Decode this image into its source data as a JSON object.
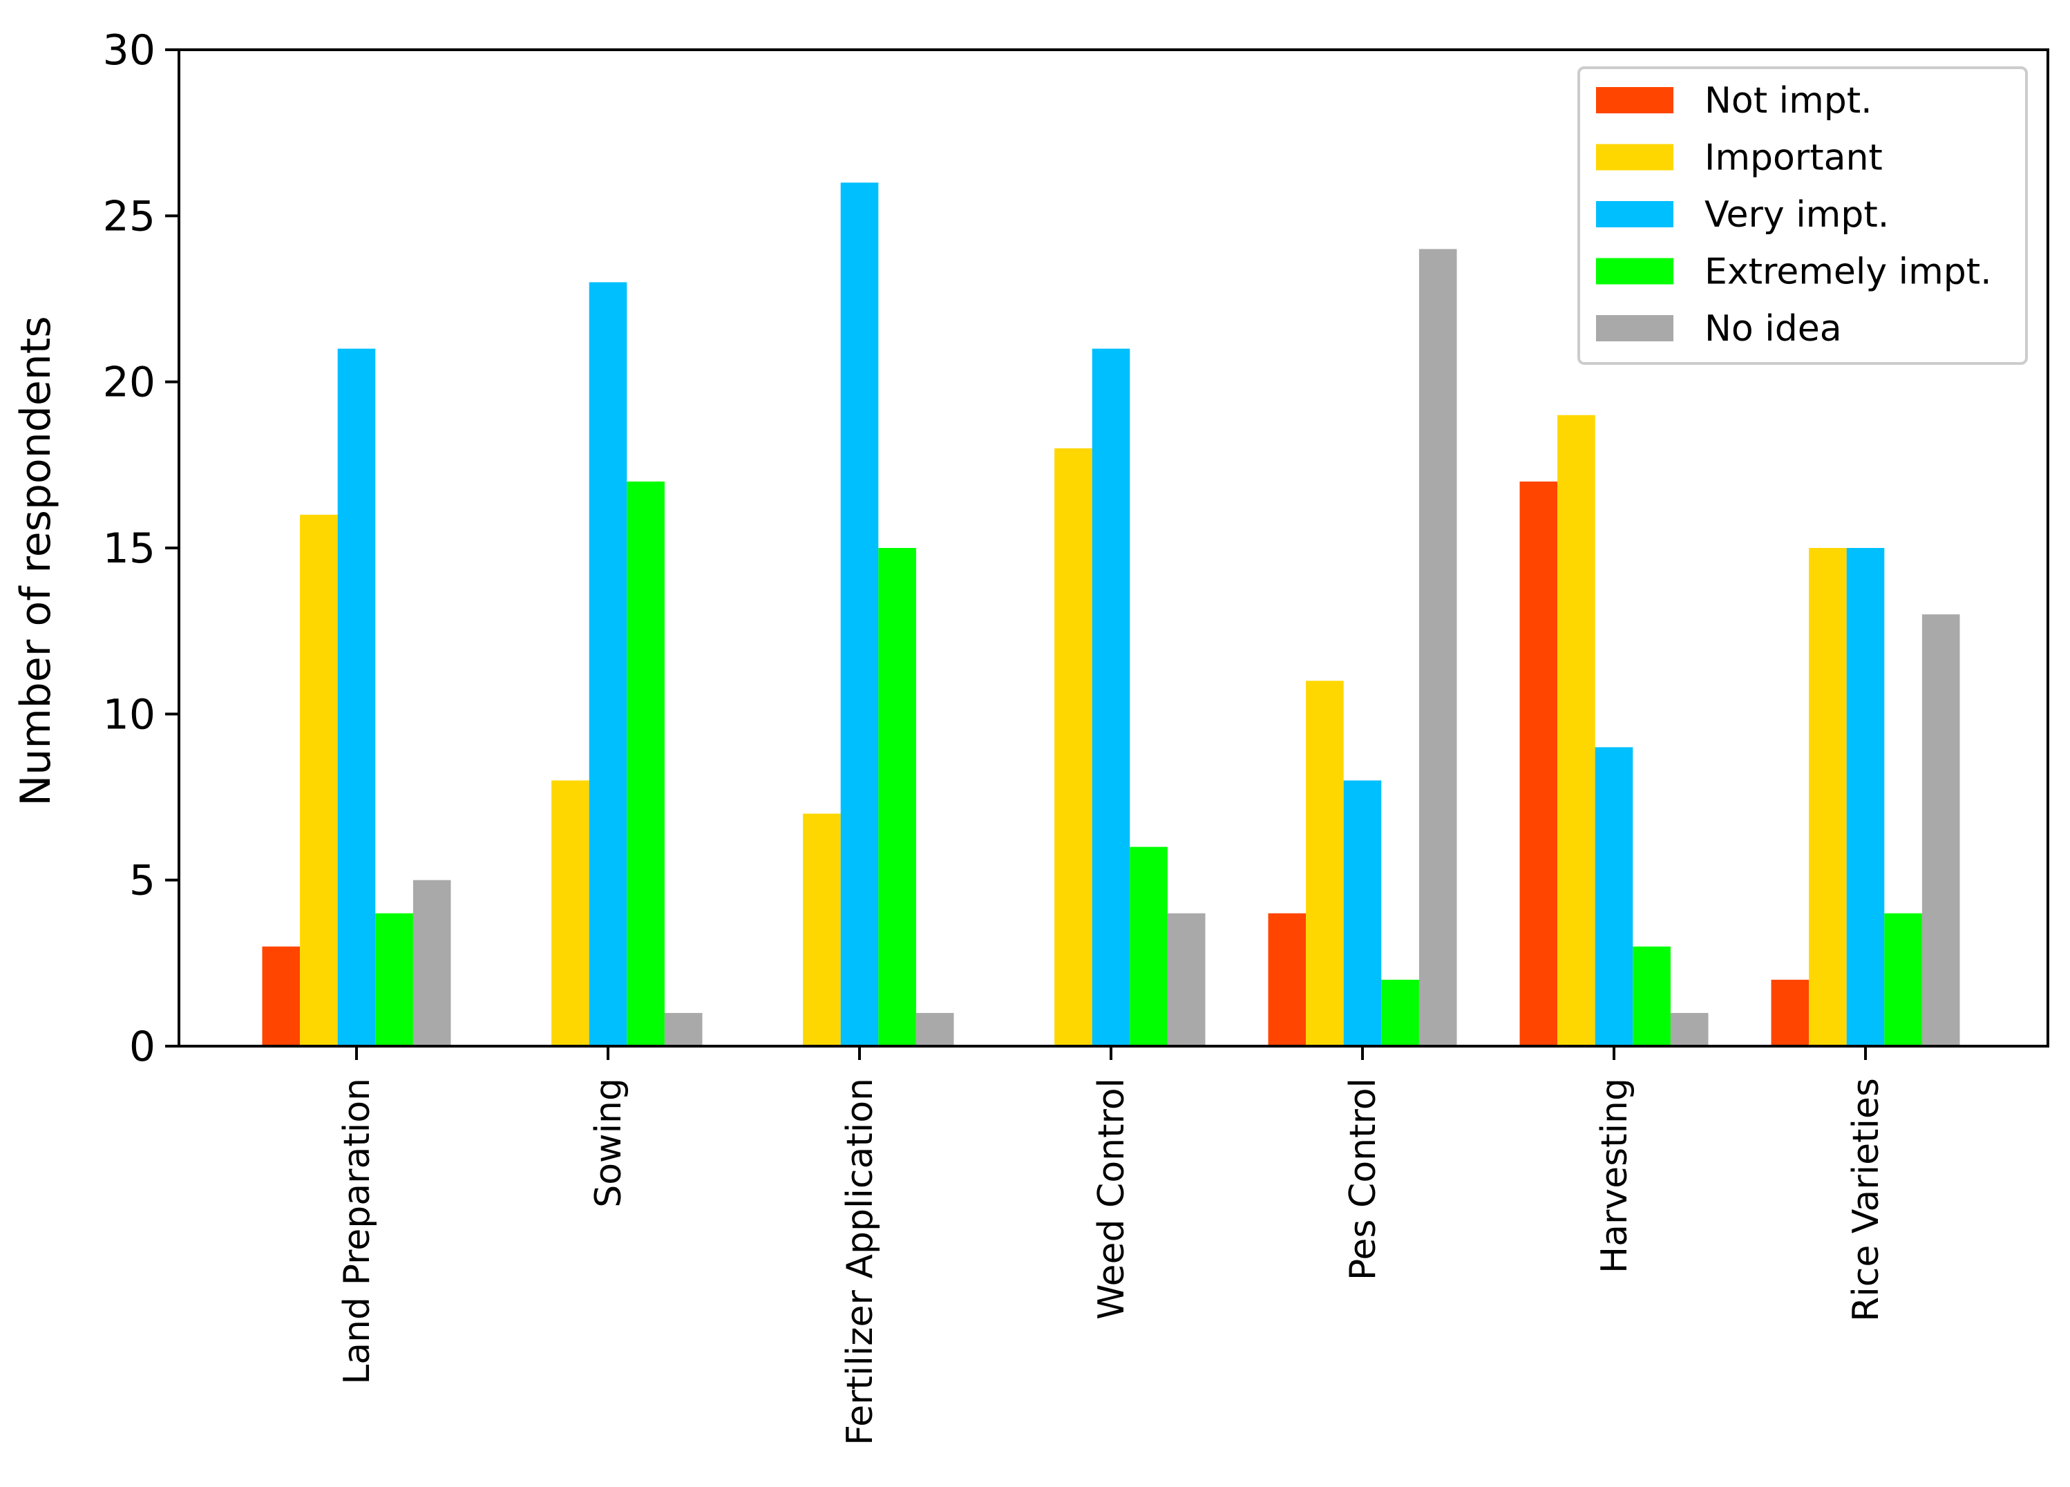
{
  "chart_data": {
    "type": "bar",
    "title": "",
    "xlabel": "",
    "ylabel": "Number of respondents",
    "ylim": [
      0,
      30
    ],
    "yticks": [
      0,
      5,
      10,
      15,
      20,
      25,
      30
    ],
    "grid": false,
    "legend_position": "top-right",
    "categories": [
      "Land Preparation",
      "Sowing",
      "Fertilizer Application",
      "Weed Control",
      "Pes Control",
      "Harvesting",
      "Rice Varieties"
    ],
    "series": [
      {
        "name": "Not impt.",
        "color": "#ff4500",
        "values": [
          3,
          0,
          0,
          0,
          4,
          17,
          2
        ]
      },
      {
        "name": "Important",
        "color": "#ffd700",
        "values": [
          16,
          8,
          7,
          18,
          11,
          19,
          15
        ]
      },
      {
        "name": "Very impt.",
        "color": "#00bfff",
        "values": [
          21,
          23,
          26,
          21,
          8,
          9,
          15
        ]
      },
      {
        "name": "Extremely impt.",
        "color": "#00ff00",
        "values": [
          4,
          17,
          15,
          6,
          2,
          3,
          4
        ]
      },
      {
        "name": "No idea",
        "color": "#a9a9a9",
        "values": [
          5,
          1,
          1,
          4,
          24,
          1,
          13
        ]
      }
    ]
  }
}
